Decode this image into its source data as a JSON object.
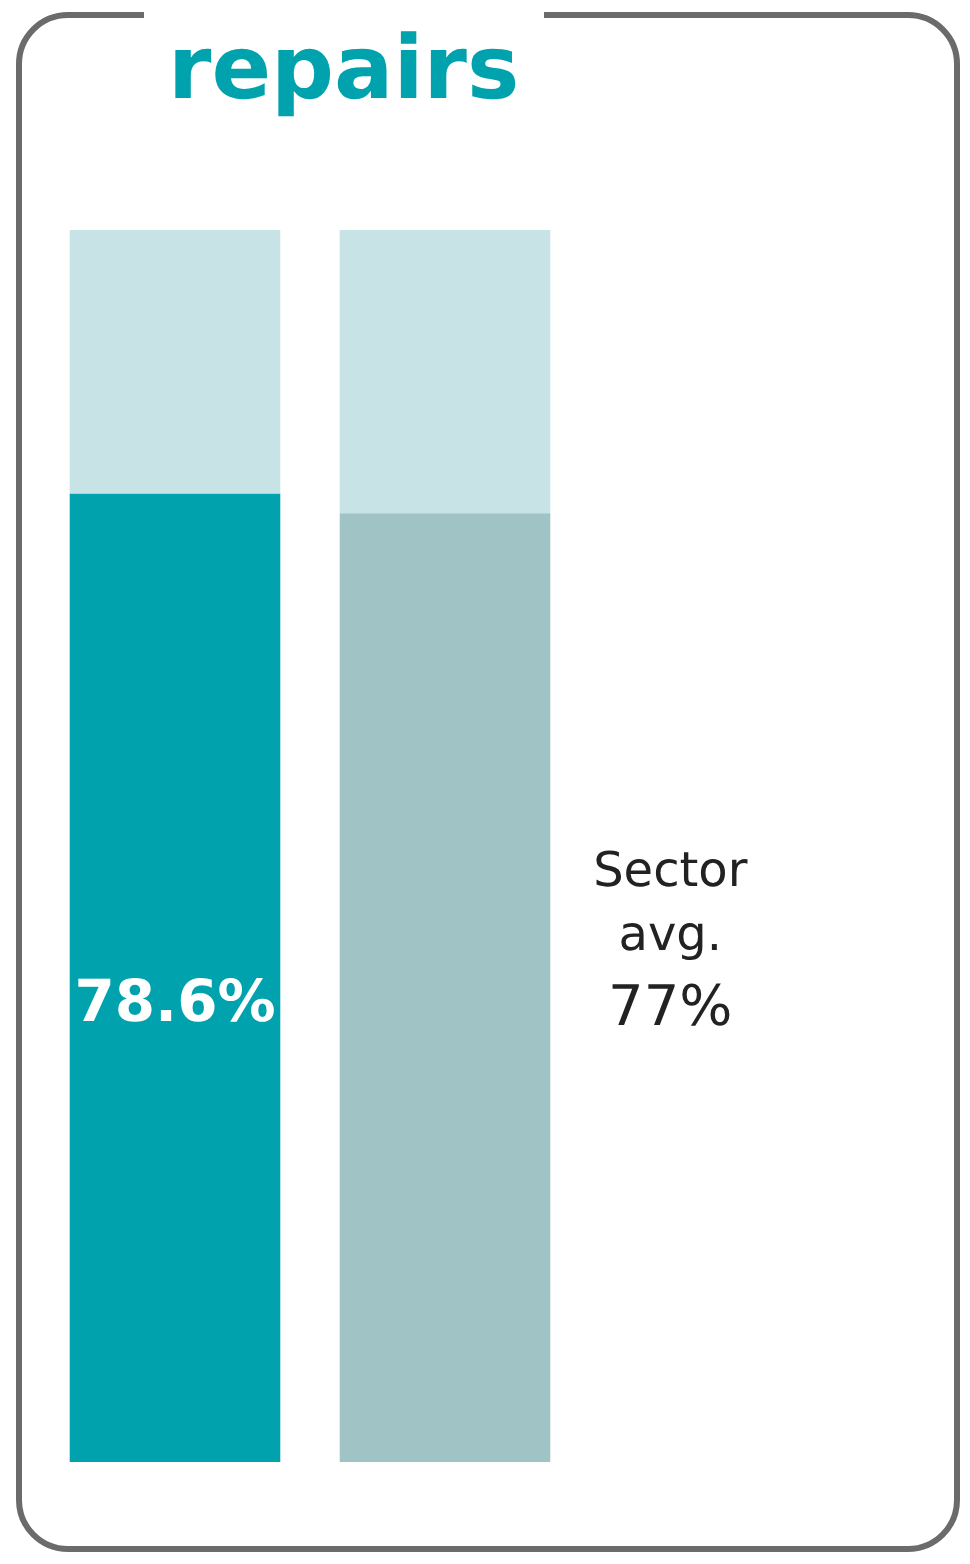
{
  "chart_data": {
    "type": "bar",
    "title": "repairs",
    "categories": [
      null,
      null
    ],
    "stacked": true,
    "legend": false,
    "tick_labels": false,
    "annotations": [
      "Sector avg. 77%"
    ],
    "series": [
      {
        "colors": [
          "#00a3ad",
          "#a0c4c6"
        ],
        "values": [
          78.6,
          77
        ],
        "value_labels": [
          "78.6%",
          null
        ]
      },
      {
        "colors": [
          "#c8e3e6",
          "#c8e3e6"
        ],
        "values": [
          21.4,
          23
        ]
      }
    ]
  }
}
